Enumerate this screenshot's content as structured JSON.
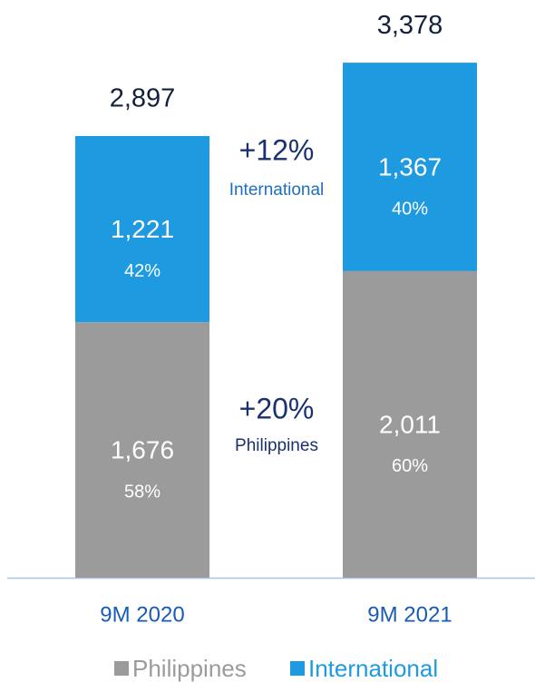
{
  "chart_data": {
    "type": "stacked_bar",
    "categories": [
      "9M 2020",
      "9M 2021"
    ],
    "series": [
      {
        "name": "Philippines",
        "color": "#9b9b9b",
        "values": [
          1676,
          2011
        ],
        "value_labels": [
          "1,676",
          "2,011"
        ],
        "percent_labels": [
          "58%",
          "60%"
        ]
      },
      {
        "name": "International",
        "color": "#1e9be0",
        "values": [
          1221,
          1367
        ],
        "value_labels": [
          "1,221",
          "1,367"
        ],
        "percent_labels": [
          "42%",
          "40%"
        ]
      }
    ],
    "totals": [
      2897,
      3378
    ],
    "total_labels": [
      "2,897",
      "3,378"
    ],
    "ylim": [
      0,
      3500
    ],
    "annotations": [
      {
        "text": "+12%",
        "label": "International"
      },
      {
        "text": "+20%",
        "label": "Philippines"
      }
    ]
  }
}
